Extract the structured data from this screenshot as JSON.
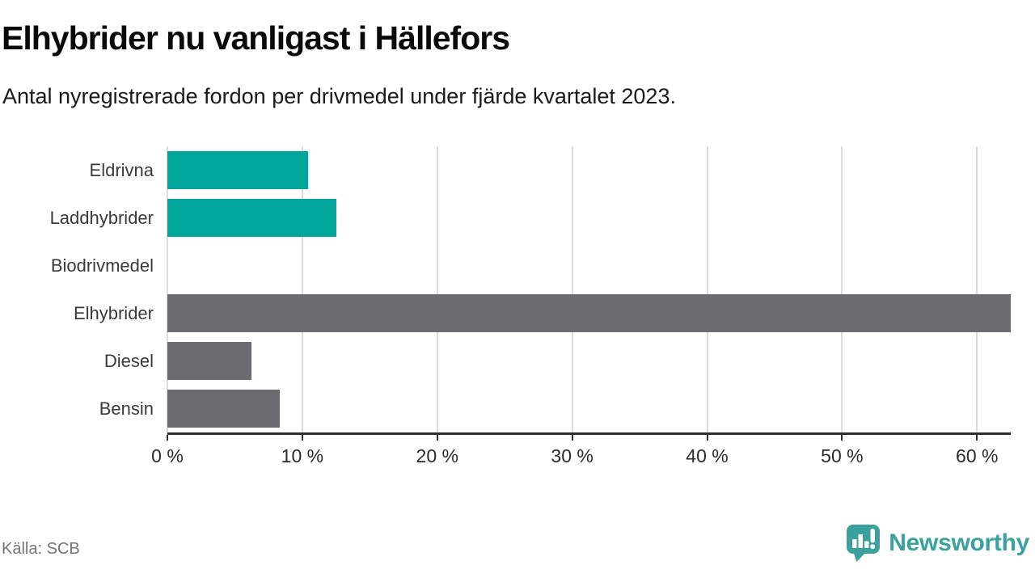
{
  "title": "Elhybrider nu vanligast i Hällefors",
  "subtitle": "Antal nyregistrerade fordon per drivmedel under fjärde kvartalet 2023.",
  "source": "Källa: SCB",
  "branding": {
    "name": "Newsworthy",
    "icon": "newsworthy-speech-bubble-bar-chart-icon",
    "color": "#3aa19c"
  },
  "colors": {
    "highlight_bar": "#00a69b",
    "default_bar": "#6b6b70",
    "gridline": "#dcdcdc",
    "axis": "#2e2e2e",
    "title_text": "#0a0a0a",
    "subtitle_text": "#1a1a1a",
    "category_label_text": "#3a3a3a",
    "tick_label_text": "#2b2b2b",
    "source_text": "#757575"
  },
  "chart_data": {
    "type": "bar",
    "orientation": "horizontal",
    "title": "Elhybrider nu vanligast i Hällefors",
    "subtitle": "Antal nyregistrerade fordon per drivmedel under fjärde kvartalet 2023.",
    "categories": [
      "Eldrivna",
      "Laddhybrider",
      "Biodrivmedel",
      "Elhybrider",
      "Diesel",
      "Bensin"
    ],
    "values": [
      10.42,
      12.5,
      0,
      62.5,
      6.25,
      8.33
    ],
    "unit": "%",
    "bar_colors": [
      "#00a69b",
      "#00a69b",
      "#6b6b70",
      "#6b6b70",
      "#6b6b70",
      "#6b6b70"
    ],
    "xlim": [
      0,
      62.5
    ],
    "xticks": [
      0,
      10,
      20,
      30,
      40,
      50,
      60
    ],
    "xtick_labels": [
      "0 %",
      "10 %",
      "20 %",
      "30 %",
      "40 %",
      "50 %",
      "60 %"
    ],
    "grid": true,
    "legend": false
  }
}
